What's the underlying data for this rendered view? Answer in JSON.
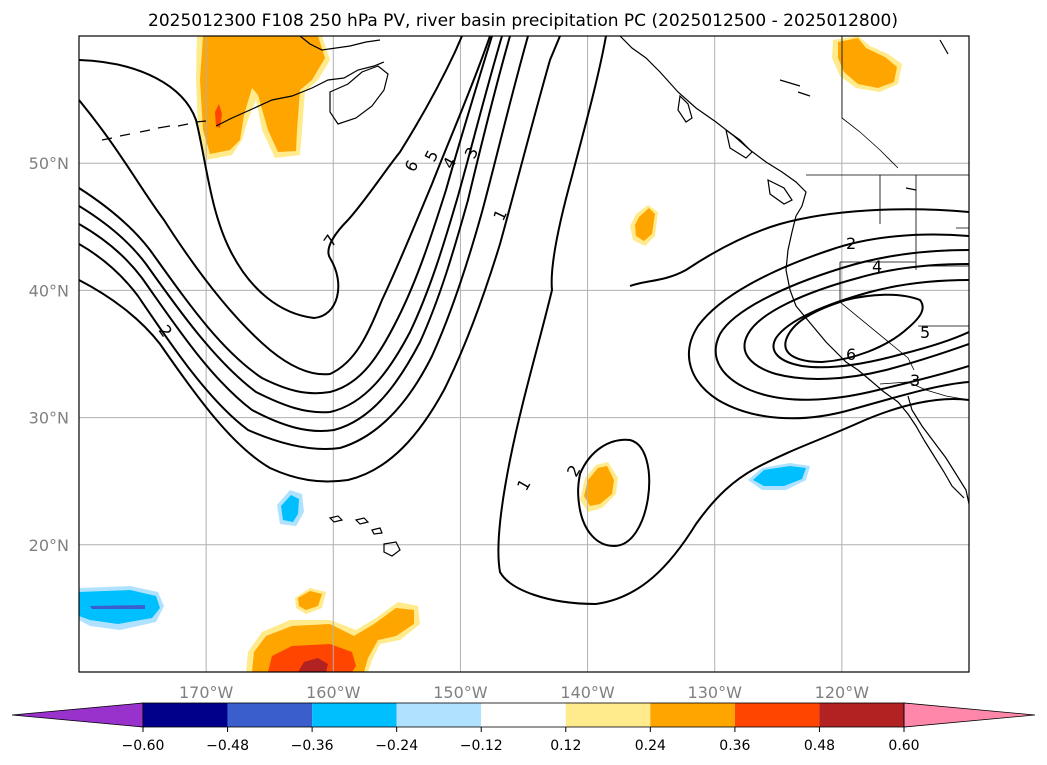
{
  "chart_data": {
    "type": "map-contour",
    "title": "2025012300 F108 250 hPa PV, river basin precipitation PC (2025012500 - 2025012800)",
    "projection": "PlateCarree",
    "xlim": [
      -180,
      -110
    ],
    "ylim": [
      10,
      60
    ],
    "x_ticks": [
      -170,
      -160,
      -150,
      -140,
      -130,
      -120
    ],
    "x_tick_labels": [
      "170°W",
      "160°W",
      "150°W",
      "140°W",
      "130°W",
      "120°W"
    ],
    "y_ticks": [
      20,
      30,
      40,
      50
    ],
    "y_tick_labels": [
      "20°N",
      "30°N",
      "40°N",
      "50°N"
    ],
    "grid": true,
    "contours": {
      "field": "250 hPa PV",
      "color": "#000000",
      "labels": [
        "1",
        "2",
        "3",
        "4",
        "5",
        "6",
        "7"
      ]
    },
    "filled": {
      "field": "river basin precipitation PC",
      "levels": [
        -0.6,
        -0.48,
        -0.36,
        -0.24,
        -0.12,
        0.12,
        0.24,
        0.36,
        0.48,
        0.6
      ],
      "level_labels": [
        "−0.60",
        "−0.48",
        "−0.36",
        "−0.24",
        "−0.12",
        "0.12",
        "0.24",
        "0.36",
        "0.48",
        "0.60"
      ],
      "colors": [
        "#9932cc",
        "#00008b",
        "#3a5fcd",
        "#00bfff",
        "#b0e2ff",
        "#ffffff",
        "#ffea8c",
        "#ffa500",
        "#ff4500",
        "#b22222",
        "#ff88aa"
      ],
      "extend": "both"
    }
  }
}
